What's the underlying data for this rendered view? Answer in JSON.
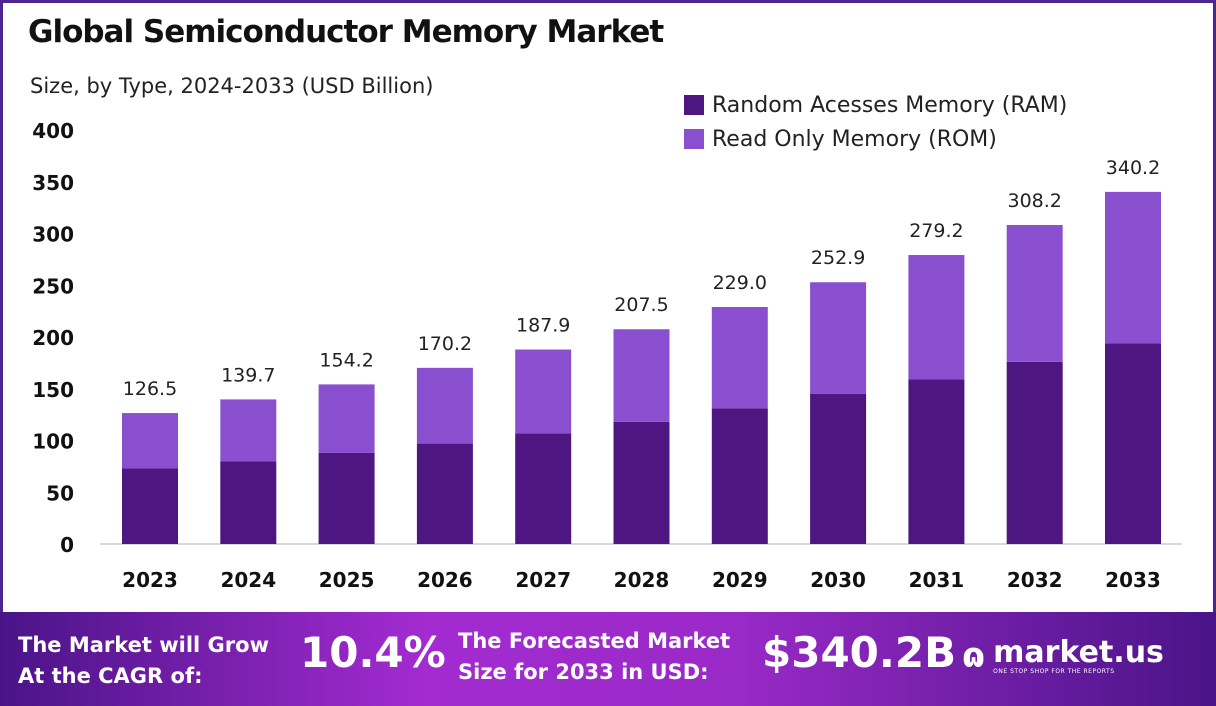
{
  "chart_data": {
    "type": "bar",
    "stacked": true,
    "title": "Global Semiconductor Memory Market",
    "subtitle": "Size, by Type, 2024-2033 (USD Billion)",
    "categories": [
      "2023",
      "2024",
      "2025",
      "2026",
      "2027",
      "2028",
      "2029",
      "2030",
      "2031",
      "2032",
      "2033"
    ],
    "totals": [
      "126.5",
      "139.7",
      "154.2",
      "170.2",
      "187.9",
      "207.5",
      "229.0",
      "252.9",
      "279.2",
      "308.2",
      "340.2"
    ],
    "series": [
      {
        "name": "Random Acesses Memory (RAM)",
        "color": "#4e1681",
        "values": [
          73,
          80,
          88,
          97,
          107,
          118,
          131,
          145,
          159,
          176,
          194
        ]
      },
      {
        "name": "Read Only Memory (ROM)",
        "color": "#8a4fcf",
        "values": [
          53.5,
          59.7,
          66.2,
          73.2,
          80.9,
          89.5,
          98.0,
          107.9,
          120.2,
          132.2,
          146.2
        ]
      }
    ],
    "yticks": [
      "0",
      "50",
      "100",
      "150",
      "200",
      "250",
      "300",
      "350",
      "400"
    ],
    "ylim": [
      0,
      400
    ],
    "grid": false,
    "legend": "top-right"
  },
  "footer": {
    "cagr_label_1": "The Market will Grow",
    "cagr_label_2": "At the CAGR of:",
    "cagr_value": "10.4%",
    "forecast_label_1": "The Forecasted Market",
    "forecast_label_2": "Size for 2033 in USD:",
    "forecast_value": "$340.2B",
    "logo_text": "market.us",
    "logo_tagline": "ONE STOP SHOP FOR THE REPORTS"
  }
}
